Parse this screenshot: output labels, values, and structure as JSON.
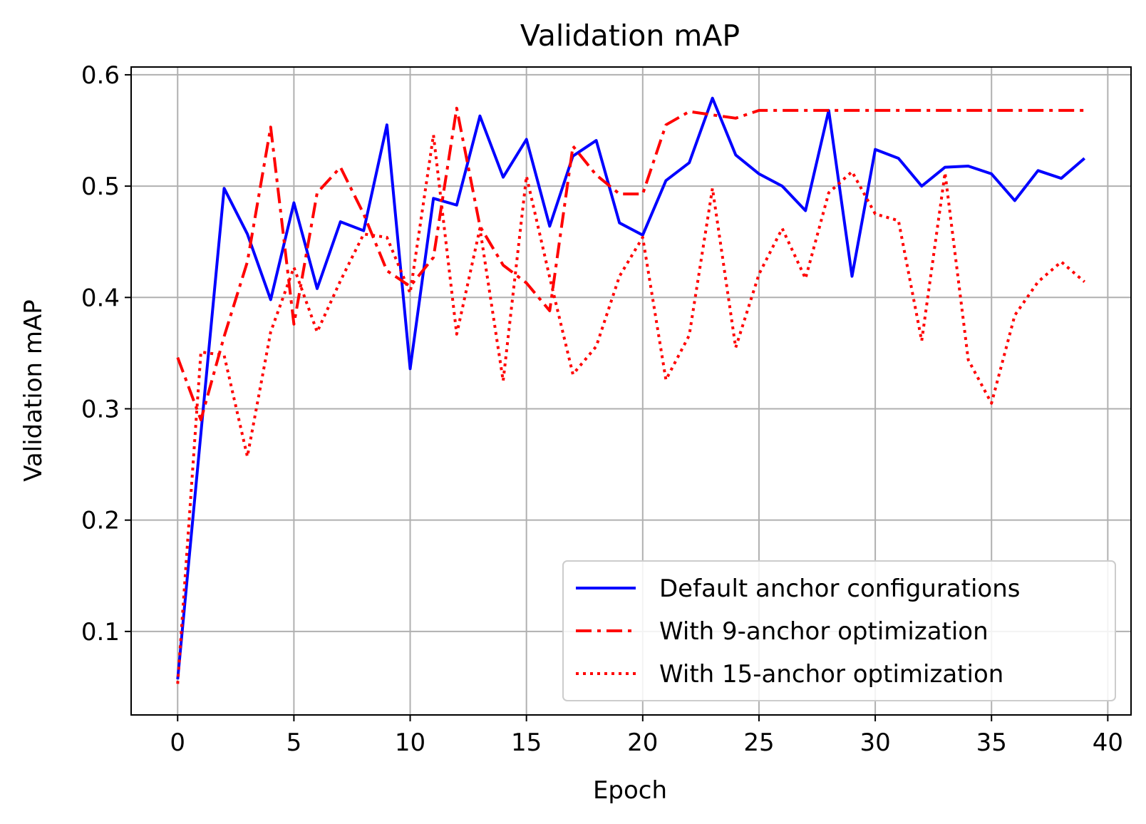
{
  "chart_data": {
    "type": "line",
    "title": "Validation mAP",
    "xlabel": "Epoch",
    "ylabel": "Validation mAP",
    "xlim": [
      -2,
      41
    ],
    "ylim": [
      0.025,
      0.607
    ],
    "xticks": [
      0,
      5,
      10,
      15,
      20,
      25,
      30,
      35,
      40
    ],
    "yticks": [
      0.1,
      0.2,
      0.3,
      0.4,
      0.5,
      0.6
    ],
    "xtick_labels": [
      "0",
      "5",
      "10",
      "15",
      "20",
      "25",
      "30",
      "35",
      "40"
    ],
    "ytick_labels": [
      "0.1",
      "0.2",
      "0.3",
      "0.4",
      "0.5",
      "0.6"
    ],
    "grid": true,
    "legend_position": "lower right",
    "x": [
      0,
      1,
      2,
      3,
      4,
      5,
      6,
      7,
      8,
      9,
      10,
      11,
      12,
      13,
      14,
      15,
      16,
      17,
      18,
      19,
      20,
      21,
      22,
      23,
      24,
      25,
      26,
      27,
      28,
      29,
      30,
      31,
      32,
      33,
      34,
      35,
      36,
      37,
      38,
      39
    ],
    "series": [
      {
        "name": "Default anchor configurations",
        "color": "#0000ff",
        "style": "solid",
        "values": [
          0.057,
          0.278,
          0.498,
          0.457,
          0.398,
          0.485,
          0.408,
          0.468,
          0.46,
          0.555,
          0.336,
          0.489,
          0.483,
          0.563,
          0.508,
          0.542,
          0.464,
          0.527,
          0.541,
          0.467,
          0.456,
          0.505,
          0.521,
          0.579,
          0.528,
          0.511,
          0.5,
          0.478,
          0.568,
          0.419,
          0.533,
          0.525,
          0.5,
          0.517,
          0.518,
          0.511,
          0.487,
          0.514,
          0.507,
          0.525
        ]
      },
      {
        "name": "With 9-anchor optimization",
        "color": "#ff0000",
        "style": "dashdot",
        "values": [
          0.346,
          0.29,
          0.365,
          0.432,
          0.553,
          0.376,
          0.494,
          0.517,
          0.475,
          0.424,
          0.41,
          0.436,
          0.57,
          0.464,
          0.429,
          0.413,
          0.388,
          0.536,
          0.51,
          0.493,
          0.493,
          0.555,
          0.567,
          0.564,
          0.561,
          0.568,
          0.568,
          0.568,
          0.568,
          0.568,
          0.568,
          0.568,
          0.568,
          0.568,
          0.568,
          0.568,
          0.568,
          0.568,
          0.568,
          0.568
        ]
      },
      {
        "name": "With 15-anchor optimization",
        "color": "#ff0000",
        "style": "dotted",
        "values": [
          0.053,
          0.351,
          0.348,
          0.257,
          0.369,
          0.427,
          0.369,
          0.415,
          0.457,
          0.454,
          0.404,
          0.546,
          0.367,
          0.462,
          0.325,
          0.509,
          0.418,
          0.331,
          0.356,
          0.419,
          0.454,
          0.326,
          0.366,
          0.498,
          0.355,
          0.421,
          0.462,
          0.417,
          0.494,
          0.513,
          0.475,
          0.469,
          0.361,
          0.512,
          0.344,
          0.305,
          0.384,
          0.414,
          0.432,
          0.414
        ]
      }
    ]
  }
}
